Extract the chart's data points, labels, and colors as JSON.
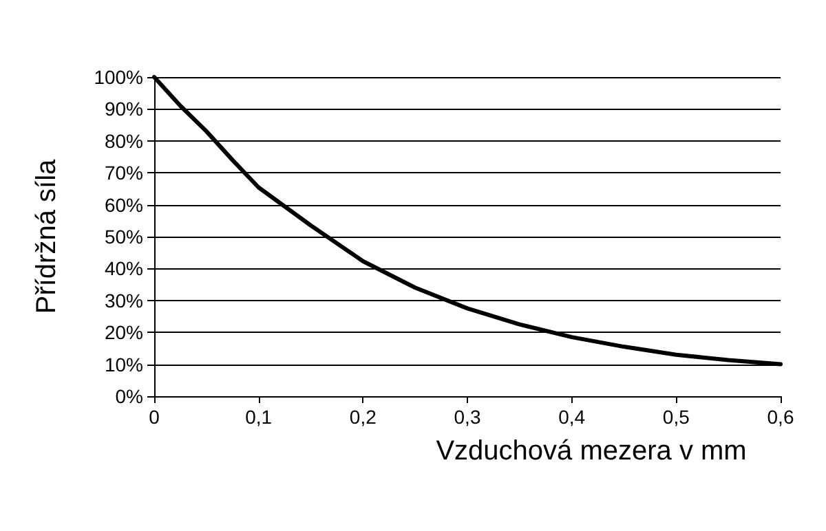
{
  "chart_data": {
    "type": "line",
    "xlabel": "Vzduchová mezera v mm",
    "ylabel": "Přídržná síla",
    "x": [
      0,
      0.025,
      0.05,
      0.075,
      0.1,
      0.15,
      0.2,
      0.25,
      0.3,
      0.35,
      0.4,
      0.45,
      0.5,
      0.55,
      0.6
    ],
    "series": [
      {
        "color": "#000000",
        "values": [
          100,
          91,
          83,
          74,
          65.4,
          53.5,
          42.3,
          34,
          27.5,
          22.5,
          18.5,
          15.5,
          13,
          11.3,
          10
        ]
      }
    ],
    "xlim": [
      0,
      0.6
    ],
    "xticks": [
      {
        "value": 0,
        "label": "0"
      },
      {
        "value": 0.1,
        "label": "0,1"
      },
      {
        "value": 0.2,
        "label": "0,2"
      },
      {
        "value": 0.3,
        "label": "0,3"
      },
      {
        "value": 0.4,
        "label": "0,4"
      },
      {
        "value": 0.5,
        "label": "0,5"
      },
      {
        "value": 0.6,
        "label": "0,6"
      }
    ],
    "ylim": [
      0,
      100
    ],
    "yticks": [
      {
        "value": 0,
        "label": "0%"
      },
      {
        "value": 10,
        "label": "10%"
      },
      {
        "value": 20,
        "label": "20%"
      },
      {
        "value": 30,
        "label": "30%"
      },
      {
        "value": 40,
        "label": "40%"
      },
      {
        "value": 50,
        "label": "50%"
      },
      {
        "value": 60,
        "label": "60%"
      },
      {
        "value": 70,
        "label": "70%"
      },
      {
        "value": 80,
        "label": "80%"
      },
      {
        "value": 90,
        "label": "90%"
      },
      {
        "value": 100,
        "label": "100%"
      }
    ],
    "grid": "y",
    "legend": false,
    "marker": "none",
    "line_style": "solid"
  }
}
